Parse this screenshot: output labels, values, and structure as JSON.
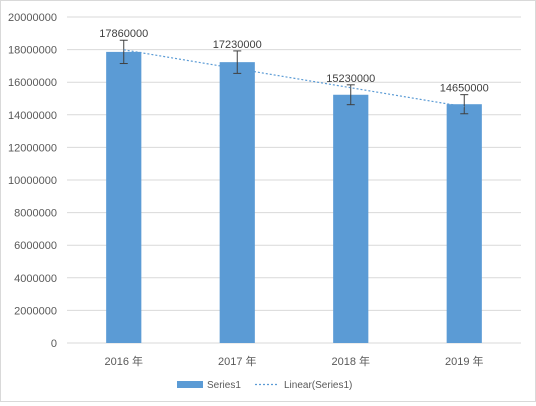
{
  "chart_data": {
    "type": "bar",
    "categories": [
      "2016 年",
      "2017 年",
      "2018 年",
      "2019 年"
    ],
    "series": [
      {
        "name": "Series1",
        "values": [
          17860000,
          17230000,
          15230000,
          14650000
        ]
      }
    ],
    "data_labels": [
      "17860000",
      "17230000",
      "15230000",
      "14650000"
    ],
    "error_bar_fraction": 0.04,
    "trendline": {
      "type": "linear",
      "name": "Linear(Series1)"
    },
    "ylim": [
      0,
      20000000
    ],
    "y_ticks": [
      "0",
      "2000000",
      "4000000",
      "6000000",
      "8000000",
      "10000000",
      "12000000",
      "14000000",
      "16000000",
      "18000000",
      "20000000"
    ],
    "grid": true,
    "legend_position": "bottom",
    "colors": {
      "bar": "#5b9bd5",
      "trendline": "#5b9bd5",
      "grid": "#d9d9d9",
      "error_bar": "#404040"
    }
  }
}
